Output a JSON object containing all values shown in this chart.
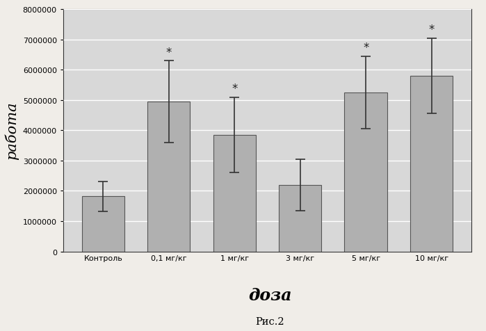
{
  "categories": [
    "Контроль",
    "0,1 мг/кг",
    "1 мг/кг",
    "3 мг/кг",
    "5 мг/кг",
    "10 мг/кг"
  ],
  "values": [
    1820000,
    4950000,
    3850000,
    2200000,
    5250000,
    5800000
  ],
  "errors": [
    500000,
    1350000,
    1250000,
    850000,
    1200000,
    1250000
  ],
  "bar_color": "#b0b0b0",
  "bar_edgecolor": "#555555",
  "error_color": "#333333",
  "ylim": [
    0,
    8000000
  ],
  "yticks": [
    0,
    1000000,
    2000000,
    3000000,
    4000000,
    5000000,
    6000000,
    7000000,
    8000000
  ],
  "ylabel": "работа",
  "xlabel": "доза",
  "caption": "Рис.2",
  "significant": [
    false,
    true,
    true,
    false,
    true,
    true
  ],
  "plot_bg": "#d8d8d8",
  "fig_bg": "#f0ede8",
  "grid_color": "#ffffff",
  "spine_color": "#333333"
}
